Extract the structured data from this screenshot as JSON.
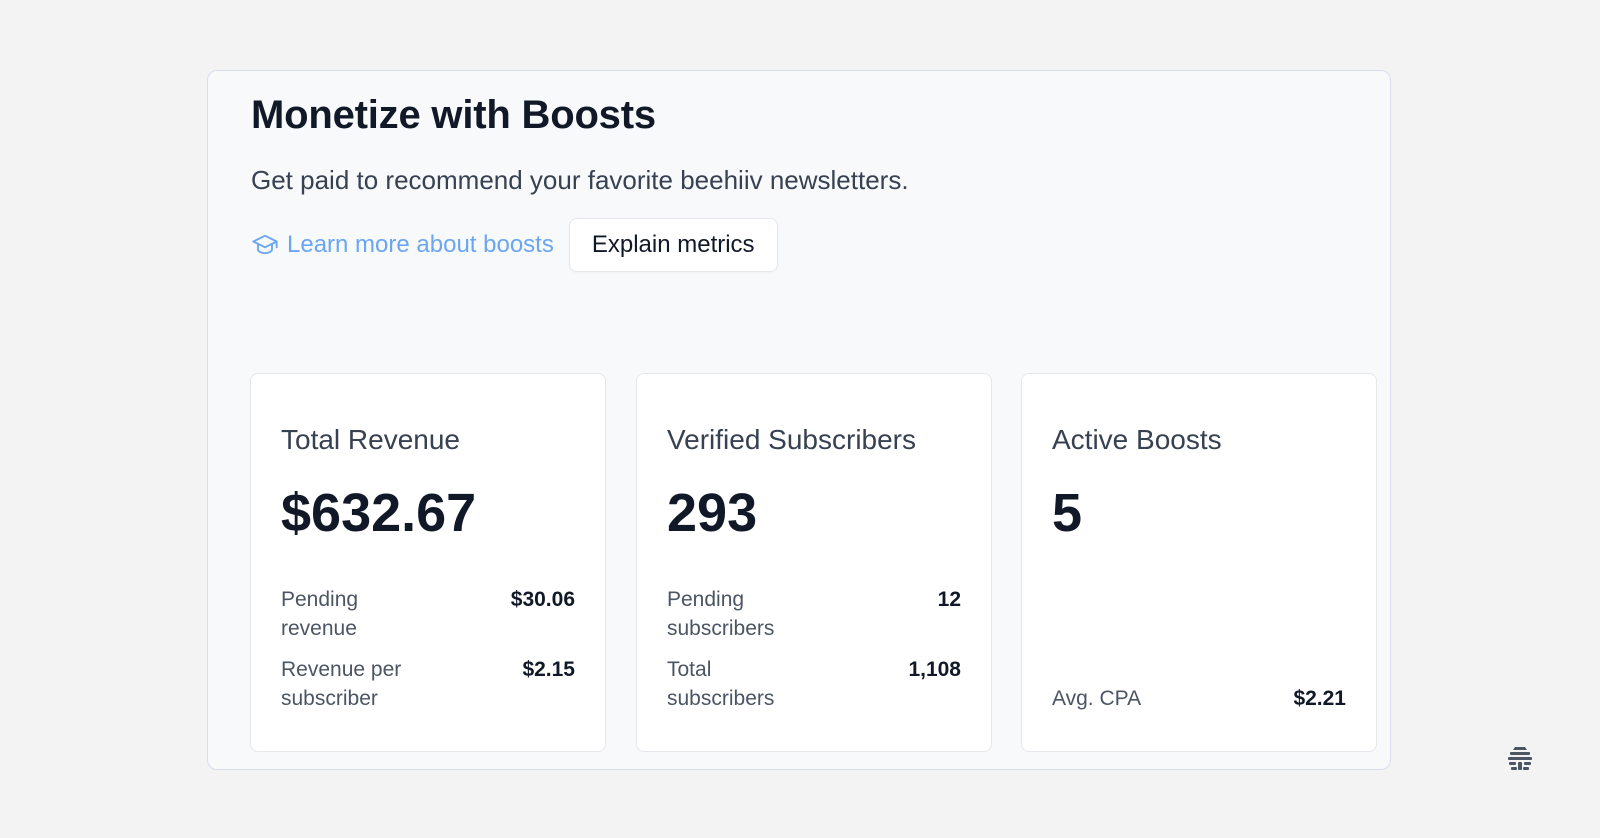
{
  "header": {
    "title": "Monetize with Boosts",
    "subtitle": "Get paid to recommend your favorite beehiiv newsletters.",
    "learn_link": "Learn more about boosts",
    "learn_icon": "graduation-cap-icon",
    "explain_button": "Explain metrics"
  },
  "colors": {
    "link": "#6aa6f2",
    "text": "#111827",
    "panel_bg": "#f8f9fb",
    "page_bg": "#f3f3f3"
  },
  "cards": [
    {
      "label": "Total Revenue",
      "value": "$632.67",
      "rows": [
        {
          "label": "Pending revenue",
          "value": "$30.06"
        },
        {
          "label": "Revenue per subscriber",
          "value": "$2.15"
        }
      ]
    },
    {
      "label": "Verified Subscribers",
      "value": "293",
      "rows": [
        {
          "label": "Pending subscribers",
          "value": "12"
        },
        {
          "label": "Total subscribers",
          "value": "1,108"
        }
      ]
    },
    {
      "label": "Active Boosts",
      "value": "5",
      "rows": [
        {
          "label": "Avg. CPA",
          "value": "$2.21"
        }
      ]
    }
  ],
  "footer": {
    "logo_icon": "beehiiv-logo-icon"
  }
}
